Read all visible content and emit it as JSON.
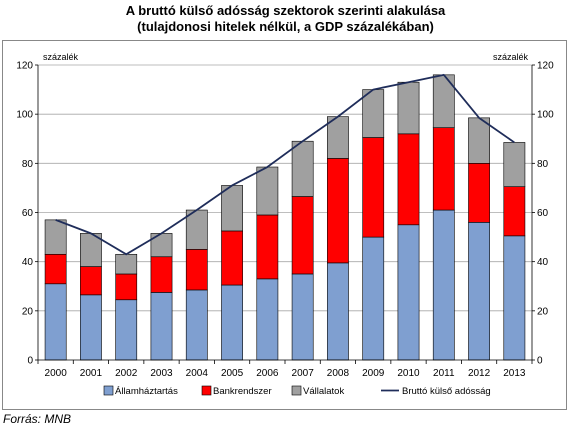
{
  "chart_data": {
    "type": "bar",
    "stacked": true,
    "title": "A bruttó külső adósság szektorok szerinti alakulása",
    "subtitle": "(tulajdonosi hitelek nélkül, a GDP százalékában)",
    "ylabel_left": "százalék",
    "ylabel_right": "százalék",
    "ylim": [
      0,
      120
    ],
    "yticks": [
      0,
      20,
      40,
      60,
      80,
      100,
      120
    ],
    "grid": true,
    "legend_position": "bottom",
    "categories": [
      "2000",
      "2001",
      "2002",
      "2003",
      "2004",
      "2005",
      "2006",
      "2007",
      "2008",
      "2009",
      "2010",
      "2011",
      "2012",
      "2013"
    ],
    "series": [
      {
        "name": "Államháztartás",
        "type": "bar",
        "color": "#7f9fd0",
        "values": [
          31,
          26.5,
          24.5,
          27.5,
          28.5,
          30.5,
          33,
          35,
          39.5,
          50,
          55,
          61,
          56,
          50.5
        ]
      },
      {
        "name": "Bankrendszer",
        "type": "bar",
        "color": "#ff0000",
        "values": [
          12,
          11.5,
          10.5,
          14.5,
          16.5,
          22,
          26,
          31.5,
          42.5,
          40.5,
          37,
          33.5,
          24,
          20
        ]
      },
      {
        "name": "Vállalatok",
        "type": "bar",
        "color": "#a0a0a0",
        "values": [
          14,
          13.5,
          8,
          9.5,
          16,
          18.5,
          19.5,
          22.5,
          17,
          19.5,
          21,
          21.5,
          18.5,
          18
        ]
      },
      {
        "name": "Bruttó külső adósság",
        "type": "line",
        "color": "#1f2d5a",
        "values": [
          57,
          51.5,
          43,
          51.5,
          61,
          71,
          78.5,
          89,
          99,
          110,
          113,
          116,
          98.5,
          88.5
        ]
      }
    ]
  },
  "source": "Forrás: MNB"
}
